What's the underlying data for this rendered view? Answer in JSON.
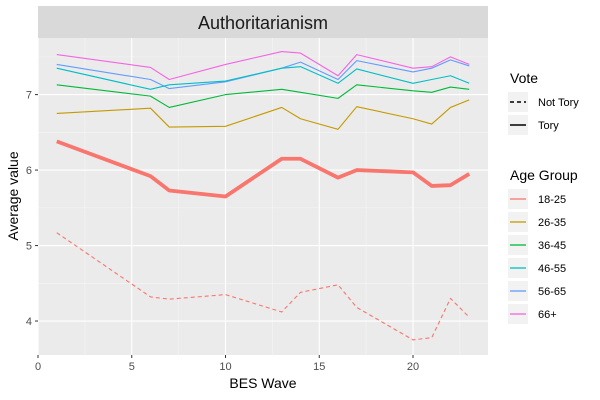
{
  "chart_data": {
    "type": "line",
    "title": "Authoritarianism",
    "xlabel": "BES Wave",
    "ylabel": "Average value",
    "xlim": [
      0,
      24
    ],
    "ylim": [
      3.55,
      7.75
    ],
    "xticks": [
      0,
      5,
      10,
      15,
      20
    ],
    "yticks": [
      4,
      5,
      6,
      7
    ],
    "grid": true,
    "legend_placement": "right",
    "legends": {
      "vote": {
        "title": "Vote",
        "entries": [
          "Not Tory",
          "Tory"
        ]
      },
      "age_group": {
        "title": "Age Group",
        "entries": [
          "18-25",
          "26-35",
          "36-45",
          "46-55",
          "56-65",
          "66+"
        ]
      }
    },
    "colors": {
      "18-25": "#F8766D",
      "26-35": "#C49A00",
      "36-45": "#00BA38",
      "46-55": "#00BFC4",
      "56-65": "#619CFF",
      "66+": "#F564E3"
    },
    "series": [
      {
        "age_group": "66+",
        "vote": "Tory",
        "x": [
          1,
          6,
          7,
          10,
          13,
          14,
          16,
          17,
          20,
          21,
          22,
          23
        ],
        "values": [
          7.53,
          7.36,
          7.2,
          7.4,
          7.57,
          7.55,
          7.25,
          7.53,
          7.35,
          7.37,
          7.5,
          7.4
        ]
      },
      {
        "age_group": "56-65",
        "vote": "Tory",
        "x": [
          1,
          6,
          7,
          10,
          13,
          14,
          16,
          17,
          20,
          21,
          22,
          23
        ],
        "values": [
          7.4,
          7.2,
          7.08,
          7.17,
          7.35,
          7.43,
          7.2,
          7.45,
          7.3,
          7.35,
          7.46,
          7.38
        ]
      },
      {
        "age_group": "46-55",
        "vote": "Tory",
        "x": [
          1,
          6,
          7,
          10,
          13,
          14,
          16,
          17,
          20,
          21,
          22,
          23
        ],
        "values": [
          7.35,
          7.07,
          7.13,
          7.18,
          7.35,
          7.37,
          7.15,
          7.34,
          7.15,
          7.2,
          7.25,
          7.15
        ]
      },
      {
        "age_group": "36-45",
        "vote": "Tory",
        "x": [
          1,
          6,
          7,
          10,
          13,
          14,
          16,
          17,
          20,
          21,
          22,
          23
        ],
        "values": [
          7.13,
          6.98,
          6.83,
          7.0,
          7.07,
          7.03,
          6.95,
          7.13,
          7.05,
          7.03,
          7.1,
          7.07
        ]
      },
      {
        "age_group": "26-35",
        "vote": "Tory",
        "x": [
          1,
          6,
          7,
          10,
          13,
          14,
          16,
          17,
          20,
          21,
          22,
          23
        ],
        "values": [
          6.75,
          6.82,
          6.57,
          6.58,
          6.83,
          6.68,
          6.54,
          6.84,
          6.68,
          6.61,
          6.83,
          6.93
        ]
      },
      {
        "age_group": "18-25",
        "vote": "Tory",
        "x": [
          1,
          6,
          7,
          10,
          13,
          14,
          16,
          17,
          20,
          21,
          22,
          23
        ],
        "values": [
          6.38,
          5.92,
          5.73,
          5.65,
          6.15,
          6.15,
          5.9,
          6.0,
          5.97,
          5.79,
          5.8,
          5.95
        ]
      },
      {
        "age_group": "18-25",
        "vote": "Not Tory",
        "x": [
          1,
          6,
          7,
          10,
          13,
          14,
          16,
          17,
          20,
          21,
          22,
          23
        ],
        "values": [
          5.17,
          4.32,
          4.29,
          4.35,
          4.12,
          4.38,
          4.48,
          4.18,
          3.75,
          3.78,
          4.3,
          4.05
        ]
      }
    ]
  }
}
